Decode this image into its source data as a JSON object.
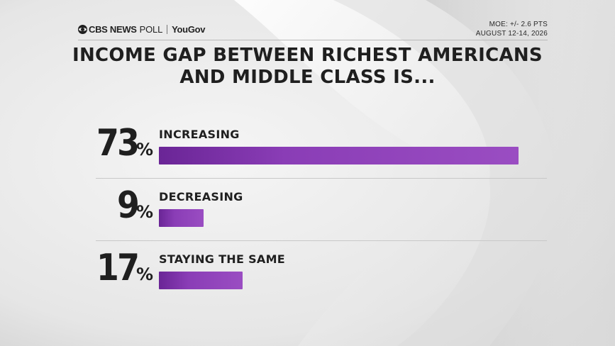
{
  "header": {
    "brand_cbs": "CBS NEWS",
    "brand_poll": "POLL",
    "brand_partner": "YouGov",
    "moe": "MOE: +/- 2.6 PTS",
    "dates": "AUGUST 12-14, 2026"
  },
  "chart_data": {
    "type": "bar",
    "orientation": "horizontal",
    "title_line1": "INCOME GAP BETWEEN RICHEST AMERICANS",
    "title_line2": "AND MIDDLE CLASS IS...",
    "categories": [
      "INCREASING",
      "DECREASING",
      "STAYING THE SAME"
    ],
    "values": [
      73,
      9,
      17
    ],
    "value_labels": [
      "73",
      "9",
      "17"
    ],
    "unit": "%",
    "xlim": [
      0,
      73
    ],
    "bar_color": "#8a3db6"
  }
}
